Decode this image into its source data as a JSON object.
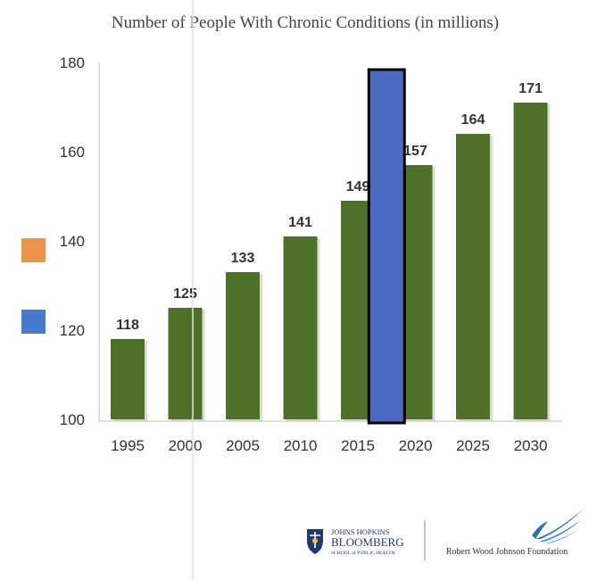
{
  "chart_data": {
    "type": "bar",
    "title": "Number of People With Chronic Conditions (in millions)",
    "xlabel": "",
    "ylabel": "",
    "categories": [
      "1995",
      "2000",
      "2005",
      "2010",
      "2015",
      "2020",
      "2025",
      "2030"
    ],
    "series": [
      {
        "values": [
          118,
          125,
          133,
          141,
          149,
          157,
          164,
          171
        ]
      }
    ],
    "data_labels": [
      "118",
      "125",
      "133",
      "141",
      "149",
      "157",
      "164",
      "171"
    ],
    "ylim": [
      100,
      180
    ],
    "yticks": [
      "100",
      "120",
      "140",
      "160",
      "180"
    ],
    "grid": false,
    "legend": "none",
    "bar_color": "#4e7028",
    "highlight_bar": {
      "value": 180,
      "between": [
        "2015",
        "2020"
      ],
      "color": "#4a6bbf",
      "border": "#000000"
    },
    "legend_swatches": [
      {
        "color": "#e8944c"
      },
      {
        "color": "#4a7acb"
      }
    ]
  },
  "logos": {
    "jhu": {
      "line1": "JOHNS HOPKINS",
      "line2": "BLOOMBERG",
      "line3": "SCHOOL of PUBLIC HEALTH"
    },
    "rwjf": {
      "name": "Robert Wood Johnson Foundation"
    }
  }
}
